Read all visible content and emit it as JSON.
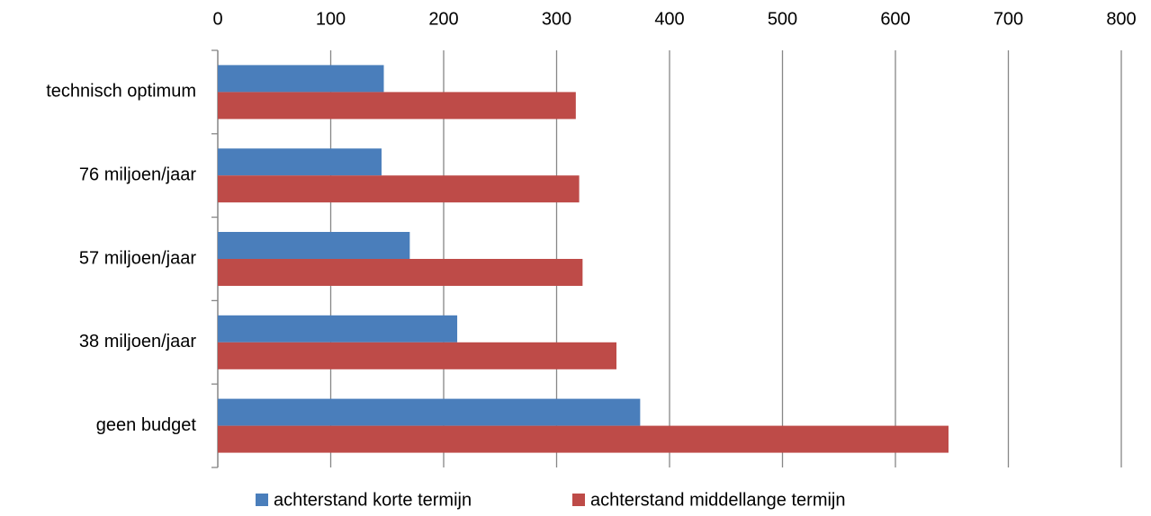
{
  "chart_data": {
    "type": "bar",
    "orientation": "horizontal",
    "categories": [
      "technisch optimum",
      "76 miljoen/jaar",
      "57 miljoen/jaar",
      "38 miljoen/jaar",
      "geen budget"
    ],
    "series": [
      {
        "name": "achterstand korte termijn",
        "color": "#4a7ebb",
        "values": [
          147,
          145,
          170,
          212,
          374
        ]
      },
      {
        "name": "achterstand middellange termijn",
        "color": "#be4b48",
        "values": [
          317,
          320,
          323,
          353,
          647
        ]
      }
    ],
    "xlim": [
      0,
      800
    ],
    "xticks": [
      0,
      100,
      200,
      300,
      400,
      500,
      600,
      700,
      800
    ],
    "grid": true,
    "legend": "bottom"
  }
}
